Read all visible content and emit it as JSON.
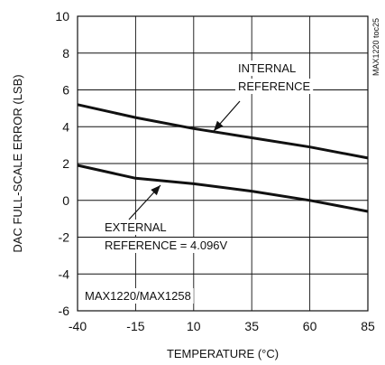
{
  "chart_data": {
    "type": "line",
    "xlabel": "TEMPERATURE (°C)",
    "ylabel": "DAC FULL-SCALE ERROR (LSB)",
    "xlim": [
      -40,
      85
    ],
    "ylim": [
      -6,
      10
    ],
    "x_ticks": [
      -40,
      -15,
      10,
      35,
      60,
      85
    ],
    "y_ticks": [
      -6,
      -4,
      -2,
      0,
      2,
      4,
      6,
      8,
      10
    ],
    "x_tick_labels": [
      "-40",
      "-15",
      "10",
      "35",
      "60",
      "85"
    ],
    "y_tick_labels": [
      "-6",
      "-4",
      "-2",
      "0",
      "2",
      "4",
      "6",
      "8",
      "10"
    ],
    "grid": true,
    "series": [
      {
        "name": "INTERNAL REFERENCE",
        "x": [
          -40,
          -15,
          10,
          35,
          60,
          85
        ],
        "y": [
          5.2,
          4.5,
          3.9,
          3.4,
          2.9,
          2.3
        ]
      },
      {
        "name": "EXTERNAL REFERENCE = 4.096V",
        "x": [
          -40,
          -15,
          10,
          35,
          60,
          85
        ],
        "y": [
          1.9,
          1.2,
          0.9,
          0.5,
          0.0,
          -0.6
        ]
      }
    ],
    "annotations": {
      "internal_line1": "INTERNAL",
      "internal_line2": "REFERENCE",
      "external_line1": "EXTERNAL",
      "external_line2": "REFERENCE = 4.096V",
      "part_label": "MAX1220/MAX1258",
      "figure_code": "MAX1220 toc25"
    }
  }
}
